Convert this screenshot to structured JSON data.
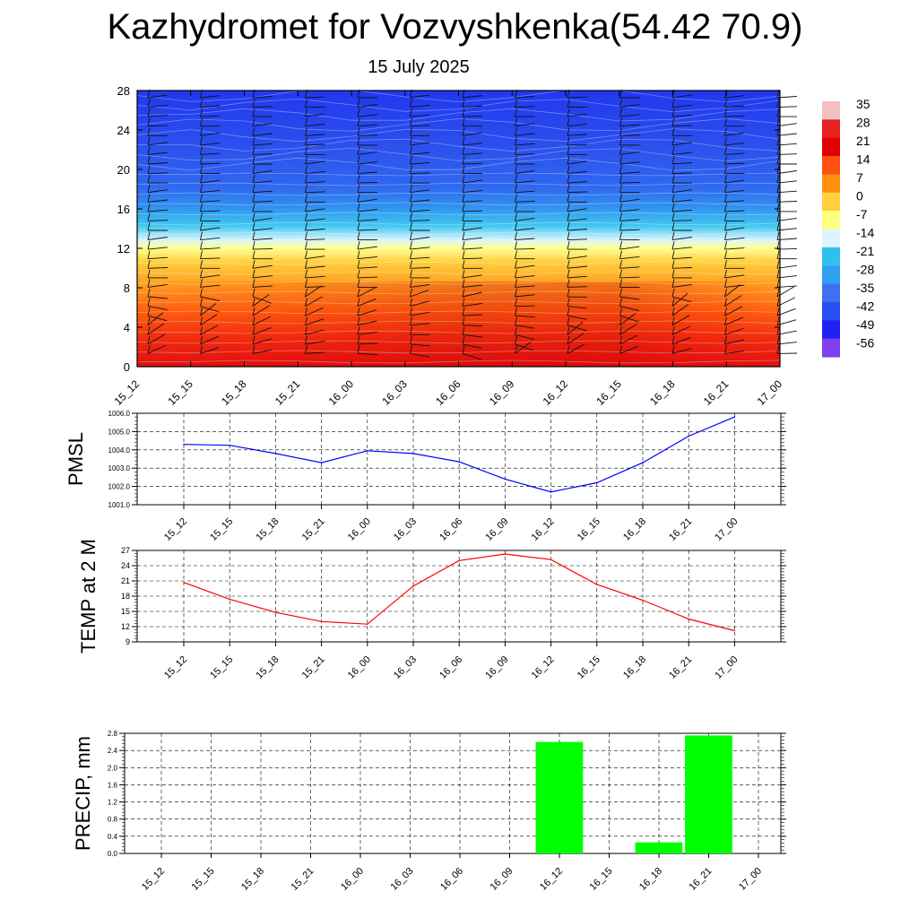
{
  "title": "Kazhydromet for Vozvyshkenka(54.42 70.9)",
  "subtitle": "15 July 2025",
  "time_labels": [
    "15_12",
    "15_15",
    "15_18",
    "15_21",
    "16_00",
    "16_03",
    "16_06",
    "16_09",
    "16_12",
    "16_15",
    "16_18",
    "16_21",
    "17_00"
  ],
  "colors": {
    "pmsl_line": "#0000ff",
    "temp_line": "#ff0000",
    "precip_bar": "#00ff00"
  },
  "colorbar": {
    "labels": [
      "35",
      "28",
      "21",
      "14",
      "7",
      "0",
      "-7",
      "-14",
      "-21",
      "-28",
      "-35",
      "-42",
      "-49",
      "-56"
    ],
    "colors_top_to_bottom": [
      "#f4c0c0",
      "#e82020",
      "#e00000",
      "#ff5010",
      "#ff9010",
      "#ffd040",
      "#ffff80",
      "#e0f4ff",
      "#30c0f0",
      "#30a0f0",
      "#4070f0",
      "#2850f0",
      "#2020f0",
      "#8040f0"
    ]
  },
  "chart_data": [
    {
      "type": "heatmap",
      "name": "cross-section",
      "y_ticks": [
        "0",
        "4",
        "8",
        "12",
        "16",
        "20",
        "24",
        "28"
      ],
      "ylim": [
        0,
        28
      ],
      "x_ticks": [
        "15_12",
        "15_15",
        "15_18",
        "15_21",
        "16_00",
        "16_03",
        "16_06",
        "16_09",
        "16_12",
        "16_15",
        "16_18",
        "16_21",
        "17_00"
      ],
      "note_levels_c": [
        [
          0,
          33
        ],
        [
          4,
          24
        ],
        [
          8,
          12
        ],
        [
          12,
          2
        ],
        [
          13,
          -8
        ],
        [
          14,
          -16
        ],
        [
          16,
          -32
        ],
        [
          18,
          -45
        ],
        [
          22,
          -50
        ],
        [
          28,
          -56
        ]
      ],
      "wind_barbs": true
    },
    {
      "type": "line",
      "ylabel": "PMSL",
      "ylim": [
        1001.0,
        1006.0
      ],
      "y_ticks": [
        "1001.0",
        "1002.0",
        "1003.0",
        "1004.0",
        "1005.0",
        "1006.0"
      ],
      "x": [
        "15_12",
        "15_15",
        "15_18",
        "15_21",
        "16_00",
        "16_03",
        "16_06",
        "16_09",
        "16_12",
        "16_15",
        "16_18",
        "16_21",
        "17_00"
      ],
      "values": [
        1004.3,
        1004.25,
        1003.8,
        1003.3,
        1003.95,
        1003.8,
        1003.35,
        1002.4,
        1001.7,
        1002.2,
        1003.3,
        1004.75,
        1005.8
      ]
    },
    {
      "type": "line",
      "ylabel": "TEMP at 2 M",
      "ylim": [
        9,
        27
      ],
      "y_ticks": [
        "9",
        "12",
        "15",
        "18",
        "21",
        "24",
        "27"
      ],
      "x": [
        "15_12",
        "15_15",
        "15_18",
        "15_21",
        "16_00",
        "16_03",
        "16_06",
        "16_09",
        "16_12",
        "16_15",
        "16_18",
        "16_21",
        "17_00"
      ],
      "values": [
        20.7,
        17.4,
        14.8,
        13.0,
        12.5,
        20.0,
        25.0,
        26.3,
        25.2,
        20.3,
        17.2,
        13.5,
        11.2
      ]
    },
    {
      "type": "bar",
      "ylabel": "PRECIP, mm",
      "ylim": [
        0.0,
        2.8
      ],
      "y_ticks": [
        "0.0",
        "0.4",
        "0.8",
        "1.2",
        "1.6",
        "2.0",
        "2.4",
        "2.8"
      ],
      "categories": [
        "15_12",
        "15_15",
        "15_18",
        "15_21",
        "16_00",
        "16_03",
        "16_06",
        "16_09",
        "16_12",
        "16_15",
        "16_18",
        "16_21",
        "17_00"
      ],
      "values": [
        0,
        0,
        0,
        0,
        0,
        0,
        0,
        0,
        2.6,
        0,
        0.26,
        2.75,
        0
      ]
    }
  ]
}
